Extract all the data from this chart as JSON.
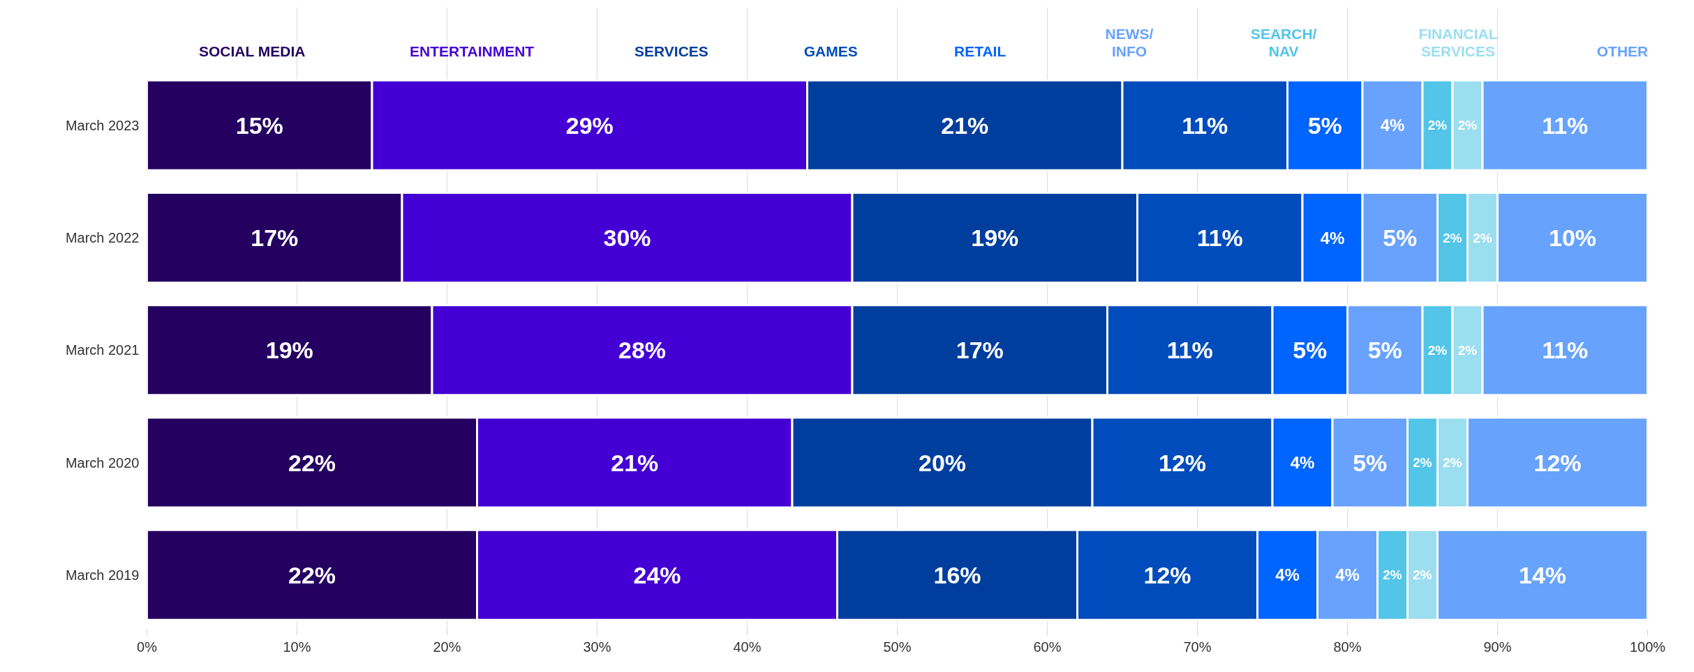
{
  "chart_data": {
    "type": "bar",
    "orientation": "horizontal",
    "stacked": true,
    "grid": "x",
    "categories": [
      "March 2023",
      "March 2022",
      "March 2021",
      "March 2020",
      "March 2019"
    ],
    "xlim": [
      0,
      100
    ],
    "xticks": [
      {
        "value": 0,
        "label": "0%"
      },
      {
        "value": 10,
        "label": "10%"
      },
      {
        "value": 20,
        "label": "20%"
      },
      {
        "value": 30,
        "label": "30%"
      },
      {
        "value": 40,
        "label": "40%"
      },
      {
        "value": 50,
        "label": "50%"
      },
      {
        "value": 60,
        "label": "60%"
      },
      {
        "value": 70,
        "label": "70%"
      },
      {
        "value": 80,
        "label": "80%"
      },
      {
        "value": 90,
        "label": "90%"
      },
      {
        "value": 100,
        "label": "100%"
      }
    ],
    "series": [
      {
        "name": "SOCIAL MEDIA",
        "color": "#240060",
        "values": [
          15,
          17,
          19,
          22,
          22
        ],
        "value_labels": [
          "15%",
          "17%",
          "19%",
          "22%",
          "22%"
        ]
      },
      {
        "name": "ENTERTAINMENT",
        "color": "#4400d4",
        "values": [
          29,
          30,
          28,
          21,
          24
        ],
        "value_labels": [
          "29%",
          "30%",
          "28%",
          "21%",
          "24%"
        ]
      },
      {
        "name": "SERVICES",
        "color": "#003e9e",
        "values": [
          21,
          19,
          17,
          20,
          16
        ],
        "value_labels": [
          "21%",
          "19%",
          "17%",
          "20%",
          "16%"
        ]
      },
      {
        "name": "GAMES",
        "color": "#004cbc",
        "values": [
          11,
          11,
          11,
          12,
          12
        ],
        "value_labels": [
          "11%",
          "11%",
          "11%",
          "12%",
          "12%"
        ]
      },
      {
        "name": "RETAIL",
        "color": "#0064ff",
        "values": [
          5,
          4,
          5,
          4,
          4
        ],
        "value_labels": [
          "5%",
          "4%",
          "5%",
          "4%",
          "4%"
        ]
      },
      {
        "name": "NEWS/\nINFO",
        "color": "#68a2fe",
        "values": [
          4,
          5,
          5,
          5,
          4
        ],
        "value_labels": [
          "4%",
          "5%",
          "5%",
          "5%",
          "4%"
        ]
      },
      {
        "name": "SEARCH/\nNAV",
        "color": "#52c5e8",
        "values": [
          2,
          2,
          2,
          2,
          2
        ],
        "value_labels": [
          "2%",
          "2%",
          "2%",
          "2%",
          "2%"
        ]
      },
      {
        "name": "FINANCIAL\nSERVICES",
        "color": "#9bdef0",
        "values": [
          2,
          2,
          2,
          2,
          2
        ],
        "value_labels": [
          "2%",
          "2%",
          "2%",
          "2%",
          "2%"
        ]
      },
      {
        "name": "OTHER",
        "color": "#67a3fd",
        "values": [
          11,
          10,
          11,
          12,
          14
        ],
        "value_labels": [
          "11%",
          "10%",
          "11%",
          "12%",
          "14%"
        ]
      }
    ]
  }
}
